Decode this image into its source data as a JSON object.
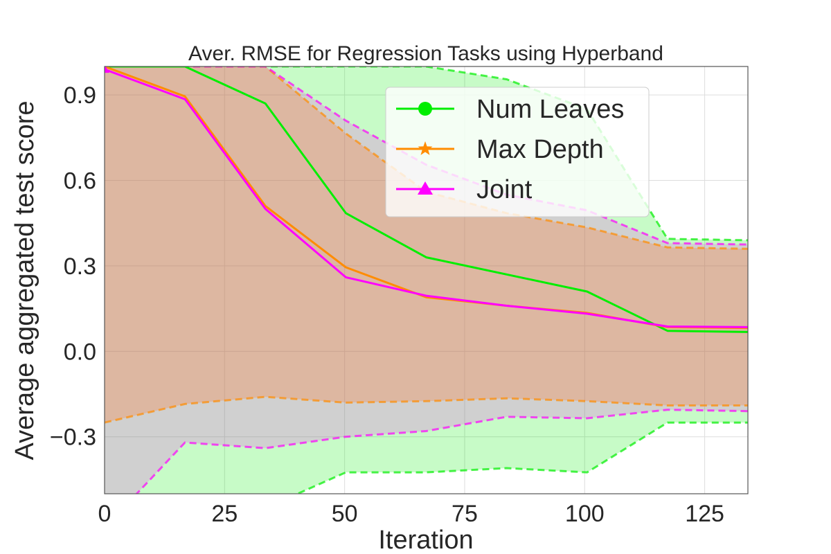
{
  "chart_data": {
    "type": "line",
    "title": "Aver. RMSE for Regression Tasks using Hyperband",
    "xlabel": "Iteration",
    "ylabel": "Average aggregated test score",
    "xlim": [
      0,
      134
    ],
    "ylim": [
      -0.5,
      1.0
    ],
    "x_ticks": [
      0,
      25,
      50,
      75,
      100,
      125
    ],
    "x_tick_labels": [
      "0",
      "25",
      "50",
      "75",
      "100",
      "125"
    ],
    "y_ticks": [
      -0.3,
      0.0,
      0.3,
      0.6,
      0.9
    ],
    "y_tick_labels": [
      "−0.3",
      "0.0",
      "0.3",
      "0.6",
      "0.9"
    ],
    "grid": true,
    "legend_position": "upper-right",
    "x": [
      0,
      16.75,
      33.5,
      50.25,
      67,
      83.75,
      100.5,
      117.25,
      134
    ],
    "series": [
      {
        "name": "Num Leaves",
        "color": "#00ee00",
        "marker": "circle",
        "values": [
          1.0,
          1.0,
          0.87,
          0.485,
          0.33,
          0.27,
          0.21,
          0.072,
          0.068
        ],
        "upper": [
          1.0,
          1.0,
          1.0,
          1.0,
          1.0,
          0.955,
          0.85,
          0.395,
          0.39
        ],
        "lower": [
          -0.62,
          -0.62,
          -0.55,
          -0.425,
          -0.425,
          -0.41,
          -0.425,
          -0.25,
          -0.25
        ]
      },
      {
        "name": "Max Depth",
        "color": "#ff8c00",
        "marker": "star",
        "values": [
          1.0,
          0.895,
          0.51,
          0.295,
          0.19,
          0.16,
          0.135,
          0.085,
          0.082
        ],
        "upper": [
          1.0,
          1.0,
          1.0,
          0.765,
          0.56,
          0.485,
          0.435,
          0.365,
          0.36
        ],
        "lower": [
          -0.25,
          -0.185,
          -0.16,
          -0.18,
          -0.175,
          -0.165,
          -0.175,
          -0.19,
          -0.19
        ]
      },
      {
        "name": "Joint",
        "color": "#ff00ff",
        "marker": "triangle",
        "values": [
          0.99,
          0.885,
          0.5,
          0.26,
          0.195,
          0.16,
          0.132,
          0.087,
          0.085
        ],
        "upper": [
          1.0,
          1.0,
          1.0,
          0.81,
          0.655,
          0.55,
          0.495,
          0.38,
          0.375
        ],
        "lower": [
          -0.62,
          -0.32,
          -0.34,
          -0.3,
          -0.28,
          -0.23,
          -0.235,
          -0.205,
          -0.21
        ]
      }
    ]
  }
}
